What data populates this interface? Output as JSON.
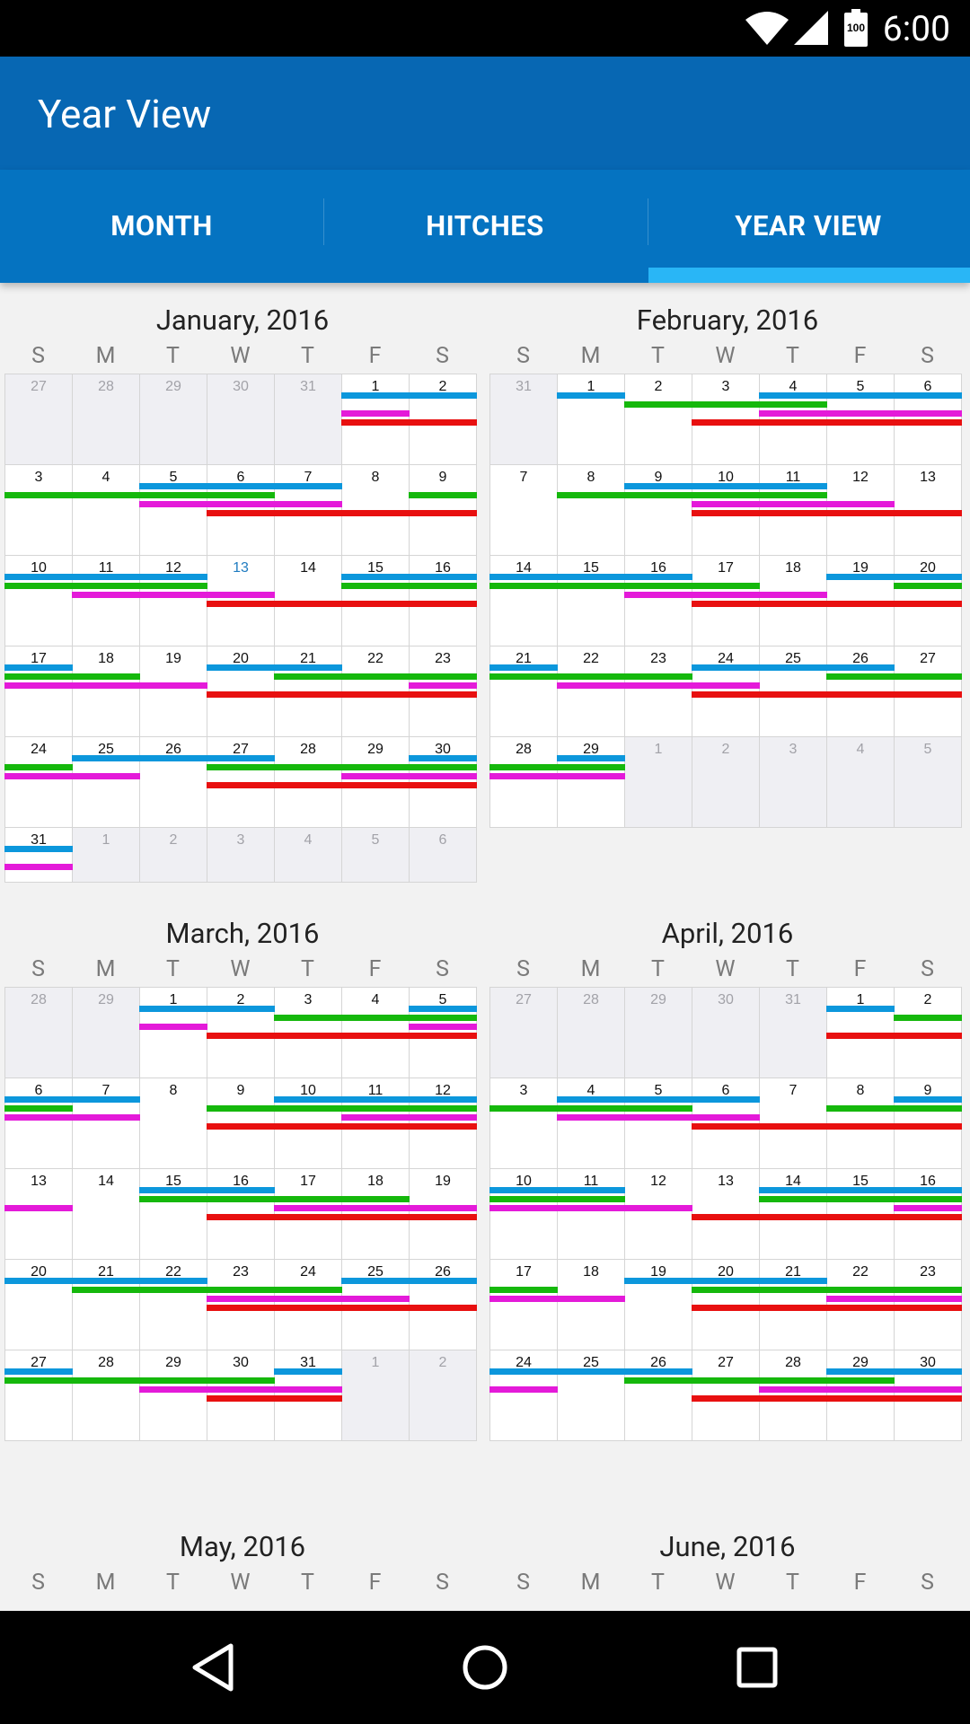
{
  "status_bar": {
    "time": "6:00",
    "battery_level": "100"
  },
  "app_bar": {
    "title": "Year View"
  },
  "tabs": [
    {
      "label": "MONTH",
      "selected": false
    },
    {
      "label": "HITCHES",
      "selected": false
    },
    {
      "label": "YEAR VIEW",
      "selected": true
    }
  ],
  "colors": {
    "app_bar": "#0767b3",
    "tab_bar": "#0573c1",
    "tab_indicator": "#29b6f6",
    "today": "#1f7bc0",
    "hitches": {
      "blue": "#0c97dc",
      "green": "#15b80c",
      "magenta": "#e41ad9",
      "red": "#e81010"
    }
  },
  "weekday_labels": [
    "S",
    "M",
    "T",
    "W",
    "T",
    "F",
    "S"
  ],
  "months": [
    {
      "title": "January, 2016",
      "cells": [
        {
          "d": "27",
          "o": true
        },
        {
          "d": "28",
          "o": true
        },
        {
          "d": "29",
          "o": true
        },
        {
          "d": "30",
          "o": true
        },
        {
          "d": "31",
          "o": true
        },
        {
          "d": "1"
        },
        {
          "d": "2"
        },
        {
          "d": "3"
        },
        {
          "d": "4"
        },
        {
          "d": "5"
        },
        {
          "d": "6"
        },
        {
          "d": "7"
        },
        {
          "d": "8"
        },
        {
          "d": "9"
        },
        {
          "d": "10"
        },
        {
          "d": "11"
        },
        {
          "d": "12"
        },
        {
          "d": "13",
          "today": true
        },
        {
          "d": "14"
        },
        {
          "d": "15"
        },
        {
          "d": "16"
        },
        {
          "d": "17"
        },
        {
          "d": "18"
        },
        {
          "d": "19"
        },
        {
          "d": "20"
        },
        {
          "d": "21"
        },
        {
          "d": "22"
        },
        {
          "d": "23"
        },
        {
          "d": "24"
        },
        {
          "d": "25"
        },
        {
          "d": "26"
        },
        {
          "d": "27"
        },
        {
          "d": "28"
        },
        {
          "d": "29"
        },
        {
          "d": "30"
        },
        {
          "d": "31"
        },
        {
          "d": "1",
          "o": true
        },
        {
          "d": "2",
          "o": true
        },
        {
          "d": "3",
          "o": true
        },
        {
          "d": "4",
          "o": true
        },
        {
          "d": "5",
          "o": true
        },
        {
          "d": "6",
          "o": true
        }
      ],
      "last_row_short": true,
      "hitches": [
        {
          "c": "blue",
          "r": 0,
          "s": 5,
          "e": 6
        },
        {
          "c": "magenta",
          "r": 0,
          "s": 5,
          "e": 5
        },
        {
          "c": "red",
          "r": 0,
          "s": 5,
          "e": 6
        },
        {
          "c": "blue",
          "r": 1,
          "s": 2,
          "e": 4
        },
        {
          "c": "green",
          "r": 1,
          "s": 0,
          "e": 3
        },
        {
          "c": "green",
          "r": 1,
          "s": 6,
          "e": 6
        },
        {
          "c": "magenta",
          "r": 1,
          "s": 2,
          "e": 4
        },
        {
          "c": "red",
          "r": 1,
          "s": 3,
          "e": 6
        },
        {
          "c": "blue",
          "r": 2,
          "s": 0,
          "e": 2
        },
        {
          "c": "blue",
          "r": 2,
          "s": 5,
          "e": 6
        },
        {
          "c": "green",
          "r": 2,
          "s": 0,
          "e": 2
        },
        {
          "c": "green",
          "r": 2,
          "s": 5,
          "e": 6
        },
        {
          "c": "magenta",
          "r": 2,
          "s": 1,
          "e": 3
        },
        {
          "c": "red",
          "r": 2,
          "s": 3,
          "e": 6
        },
        {
          "c": "blue",
          "r": 3,
          "s": 0,
          "e": 0
        },
        {
          "c": "blue",
          "r": 3,
          "s": 3,
          "e": 4
        },
        {
          "c": "green",
          "r": 3,
          "s": 0,
          "e": 1
        },
        {
          "c": "green",
          "r": 3,
          "s": 4,
          "e": 6
        },
        {
          "c": "magenta",
          "r": 3,
          "s": 0,
          "e": 2
        },
        {
          "c": "magenta",
          "r": 3,
          "s": 6,
          "e": 6
        },
        {
          "c": "red",
          "r": 3,
          "s": 3,
          "e": 6
        },
        {
          "c": "blue",
          "r": 4,
          "s": 1,
          "e": 3
        },
        {
          "c": "blue",
          "r": 4,
          "s": 6,
          "e": 6
        },
        {
          "c": "green",
          "r": 4,
          "s": 0,
          "e": 0
        },
        {
          "c": "green",
          "r": 4,
          "s": 3,
          "e": 6
        },
        {
          "c": "magenta",
          "r": 4,
          "s": 0,
          "e": 1
        },
        {
          "c": "magenta",
          "r": 4,
          "s": 5,
          "e": 6
        },
        {
          "c": "red",
          "r": 4,
          "s": 3,
          "e": 6
        },
        {
          "c": "blue",
          "r": 5,
          "s": 0,
          "e": 0
        },
        {
          "c": "magenta",
          "r": 5,
          "s": 0,
          "e": 0
        }
      ]
    },
    {
      "title": "February, 2016",
      "cells": [
        {
          "d": "31",
          "o": true
        },
        {
          "d": "1"
        },
        {
          "d": "2"
        },
        {
          "d": "3"
        },
        {
          "d": "4"
        },
        {
          "d": "5"
        },
        {
          "d": "6"
        },
        {
          "d": "7"
        },
        {
          "d": "8"
        },
        {
          "d": "9"
        },
        {
          "d": "10"
        },
        {
          "d": "11"
        },
        {
          "d": "12"
        },
        {
          "d": "13"
        },
        {
          "d": "14"
        },
        {
          "d": "15"
        },
        {
          "d": "16"
        },
        {
          "d": "17"
        },
        {
          "d": "18"
        },
        {
          "d": "19"
        },
        {
          "d": "20"
        },
        {
          "d": "21"
        },
        {
          "d": "22"
        },
        {
          "d": "23"
        },
        {
          "d": "24"
        },
        {
          "d": "25"
        },
        {
          "d": "26"
        },
        {
          "d": "27"
        },
        {
          "d": "28"
        },
        {
          "d": "29"
        },
        {
          "d": "1",
          "o": true
        },
        {
          "d": "2",
          "o": true
        },
        {
          "d": "3",
          "o": true
        },
        {
          "d": "4",
          "o": true
        },
        {
          "d": "5",
          "o": true
        }
      ],
      "last_row_short": false,
      "hitches": [
        {
          "c": "blue",
          "r": 0,
          "s": 1,
          "e": 1
        },
        {
          "c": "blue",
          "r": 0,
          "s": 4,
          "e": 6
        },
        {
          "c": "green",
          "r": 0,
          "s": 2,
          "e": 4
        },
        {
          "c": "magenta",
          "r": 0,
          "s": 4,
          "e": 6
        },
        {
          "c": "red",
          "r": 0,
          "s": 3,
          "e": 6
        },
        {
          "c": "blue",
          "r": 1,
          "s": 2,
          "e": 4
        },
        {
          "c": "green",
          "r": 1,
          "s": 1,
          "e": 4
        },
        {
          "c": "magenta",
          "r": 1,
          "s": 3,
          "e": 5
        },
        {
          "c": "red",
          "r": 1,
          "s": 3,
          "e": 6
        },
        {
          "c": "blue",
          "r": 2,
          "s": 0,
          "e": 2
        },
        {
          "c": "blue",
          "r": 2,
          "s": 5,
          "e": 6
        },
        {
          "c": "green",
          "r": 2,
          "s": 0,
          "e": 3
        },
        {
          "c": "green",
          "r": 2,
          "s": 6,
          "e": 6
        },
        {
          "c": "magenta",
          "r": 2,
          "s": 2,
          "e": 4
        },
        {
          "c": "red",
          "r": 2,
          "s": 3,
          "e": 6
        },
        {
          "c": "blue",
          "r": 3,
          "s": 0,
          "e": 0
        },
        {
          "c": "blue",
          "r": 3,
          "s": 3,
          "e": 5
        },
        {
          "c": "green",
          "r": 3,
          "s": 0,
          "e": 2
        },
        {
          "c": "green",
          "r": 3,
          "s": 5,
          "e": 6
        },
        {
          "c": "magenta",
          "r": 3,
          "s": 1,
          "e": 3
        },
        {
          "c": "red",
          "r": 3,
          "s": 3,
          "e": 6
        },
        {
          "c": "blue",
          "r": 4,
          "s": 1,
          "e": 1
        },
        {
          "c": "green",
          "r": 4,
          "s": 0,
          "e": 1
        },
        {
          "c": "magenta",
          "r": 4,
          "s": 0,
          "e": 1
        }
      ]
    },
    {
      "title": "March, 2016",
      "cells": [
        {
          "d": "28",
          "o": true
        },
        {
          "d": "29",
          "o": true
        },
        {
          "d": "1"
        },
        {
          "d": "2"
        },
        {
          "d": "3"
        },
        {
          "d": "4"
        },
        {
          "d": "5"
        },
        {
          "d": "6"
        },
        {
          "d": "7"
        },
        {
          "d": "8"
        },
        {
          "d": "9"
        },
        {
          "d": "10"
        },
        {
          "d": "11"
        },
        {
          "d": "12"
        },
        {
          "d": "13"
        },
        {
          "d": "14"
        },
        {
          "d": "15"
        },
        {
          "d": "16"
        },
        {
          "d": "17"
        },
        {
          "d": "18"
        },
        {
          "d": "19"
        },
        {
          "d": "20"
        },
        {
          "d": "21"
        },
        {
          "d": "22"
        },
        {
          "d": "23"
        },
        {
          "d": "24"
        },
        {
          "d": "25"
        },
        {
          "d": "26"
        },
        {
          "d": "27"
        },
        {
          "d": "28"
        },
        {
          "d": "29"
        },
        {
          "d": "30"
        },
        {
          "d": "31"
        },
        {
          "d": "1",
          "o": true
        },
        {
          "d": "2",
          "o": true
        }
      ],
      "last_row_short": false,
      "hitches": [
        {
          "c": "blue",
          "r": 0,
          "s": 2,
          "e": 3
        },
        {
          "c": "blue",
          "r": 0,
          "s": 6,
          "e": 6
        },
        {
          "c": "green",
          "r": 0,
          "s": 4,
          "e": 6
        },
        {
          "c": "magenta",
          "r": 0,
          "s": 2,
          "e": 2
        },
        {
          "c": "magenta",
          "r": 0,
          "s": 6,
          "e": 6
        },
        {
          "c": "red",
          "r": 0,
          "s": 3,
          "e": 6
        },
        {
          "c": "blue",
          "r": 1,
          "s": 0,
          "e": 1
        },
        {
          "c": "blue",
          "r": 1,
          "s": 4,
          "e": 6
        },
        {
          "c": "green",
          "r": 1,
          "s": 0,
          "e": 0
        },
        {
          "c": "green",
          "r": 1,
          "s": 3,
          "e": 6
        },
        {
          "c": "magenta",
          "r": 1,
          "s": 0,
          "e": 1
        },
        {
          "c": "magenta",
          "r": 1,
          "s": 5,
          "e": 6
        },
        {
          "c": "red",
          "r": 1,
          "s": 3,
          "e": 6
        },
        {
          "c": "blue",
          "r": 2,
          "s": 2,
          "e": 3
        },
        {
          "c": "green",
          "r": 2,
          "s": 2,
          "e": 5
        },
        {
          "c": "magenta",
          "r": 2,
          "s": 0,
          "e": 0
        },
        {
          "c": "magenta",
          "r": 2,
          "s": 4,
          "e": 6
        },
        {
          "c": "red",
          "r": 2,
          "s": 3,
          "e": 6
        },
        {
          "c": "blue",
          "r": 3,
          "s": 0,
          "e": 2
        },
        {
          "c": "blue",
          "r": 3,
          "s": 5,
          "e": 6
        },
        {
          "c": "green",
          "r": 3,
          "s": 1,
          "e": 4
        },
        {
          "c": "magenta",
          "r": 3,
          "s": 3,
          "e": 5
        },
        {
          "c": "red",
          "r": 3,
          "s": 3,
          "e": 6
        },
        {
          "c": "blue",
          "r": 4,
          "s": 0,
          "e": 0
        },
        {
          "c": "blue",
          "r": 4,
          "s": 4,
          "e": 4
        },
        {
          "c": "green",
          "r": 4,
          "s": 0,
          "e": 3
        },
        {
          "c": "magenta",
          "r": 4,
          "s": 2,
          "e": 4
        },
        {
          "c": "red",
          "r": 4,
          "s": 3,
          "e": 4
        }
      ]
    },
    {
      "title": "April, 2016",
      "cells": [
        {
          "d": "27",
          "o": true
        },
        {
          "d": "28",
          "o": true
        },
        {
          "d": "29",
          "o": true
        },
        {
          "d": "30",
          "o": true
        },
        {
          "d": "31",
          "o": true
        },
        {
          "d": "1"
        },
        {
          "d": "2"
        },
        {
          "d": "3"
        },
        {
          "d": "4"
        },
        {
          "d": "5"
        },
        {
          "d": "6"
        },
        {
          "d": "7"
        },
        {
          "d": "8"
        },
        {
          "d": "9"
        },
        {
          "d": "10"
        },
        {
          "d": "11"
        },
        {
          "d": "12"
        },
        {
          "d": "13"
        },
        {
          "d": "14"
        },
        {
          "d": "15"
        },
        {
          "d": "16"
        },
        {
          "d": "17"
        },
        {
          "d": "18"
        },
        {
          "d": "19"
        },
        {
          "d": "20"
        },
        {
          "d": "21"
        },
        {
          "d": "22"
        },
        {
          "d": "23"
        },
        {
          "d": "24"
        },
        {
          "d": "25"
        },
        {
          "d": "26"
        },
        {
          "d": "27"
        },
        {
          "d": "28"
        },
        {
          "d": "29"
        },
        {
          "d": "30"
        }
      ],
      "last_row_short": false,
      "hitches": [
        {
          "c": "blue",
          "r": 0,
          "s": 5,
          "e": 5
        },
        {
          "c": "green",
          "r": 0,
          "s": 6,
          "e": 6
        },
        {
          "c": "red",
          "r": 0,
          "s": 5,
          "e": 6
        },
        {
          "c": "blue",
          "r": 1,
          "s": 1,
          "e": 3
        },
        {
          "c": "blue",
          "r": 1,
          "s": 6,
          "e": 6
        },
        {
          "c": "green",
          "r": 1,
          "s": 0,
          "e": 2
        },
        {
          "c": "green",
          "r": 1,
          "s": 5,
          "e": 6
        },
        {
          "c": "magenta",
          "r": 1,
          "s": 1,
          "e": 3
        },
        {
          "c": "red",
          "r": 1,
          "s": 3,
          "e": 6
        },
        {
          "c": "blue",
          "r": 2,
          "s": 0,
          "e": 1
        },
        {
          "c": "blue",
          "r": 2,
          "s": 4,
          "e": 6
        },
        {
          "c": "green",
          "r": 2,
          "s": 0,
          "e": 1
        },
        {
          "c": "green",
          "r": 2,
          "s": 4,
          "e": 6
        },
        {
          "c": "magenta",
          "r": 2,
          "s": 0,
          "e": 2
        },
        {
          "c": "magenta",
          "r": 2,
          "s": 6,
          "e": 6
        },
        {
          "c": "red",
          "r": 2,
          "s": 3,
          "e": 6
        },
        {
          "c": "blue",
          "r": 3,
          "s": 2,
          "e": 4
        },
        {
          "c": "green",
          "r": 3,
          "s": 0,
          "e": 0
        },
        {
          "c": "green",
          "r": 3,
          "s": 3,
          "e": 6
        },
        {
          "c": "magenta",
          "r": 3,
          "s": 0,
          "e": 1
        },
        {
          "c": "magenta",
          "r": 3,
          "s": 5,
          "e": 6
        },
        {
          "c": "red",
          "r": 3,
          "s": 3,
          "e": 6
        },
        {
          "c": "blue",
          "r": 4,
          "s": 0,
          "e": 2
        },
        {
          "c": "blue",
          "r": 4,
          "s": 5,
          "e": 6
        },
        {
          "c": "green",
          "r": 4,
          "s": 2,
          "e": 5
        },
        {
          "c": "magenta",
          "r": 4,
          "s": 0,
          "e": 0
        },
        {
          "c": "magenta",
          "r": 4,
          "s": 4,
          "e": 6
        },
        {
          "c": "red",
          "r": 4,
          "s": 3,
          "e": 6
        }
      ]
    },
    {
      "title": "May, 2016",
      "cells": [],
      "last_row_short": false,
      "hitches": []
    },
    {
      "title": "June, 2016",
      "cells": [],
      "last_row_short": false,
      "hitches": []
    }
  ]
}
